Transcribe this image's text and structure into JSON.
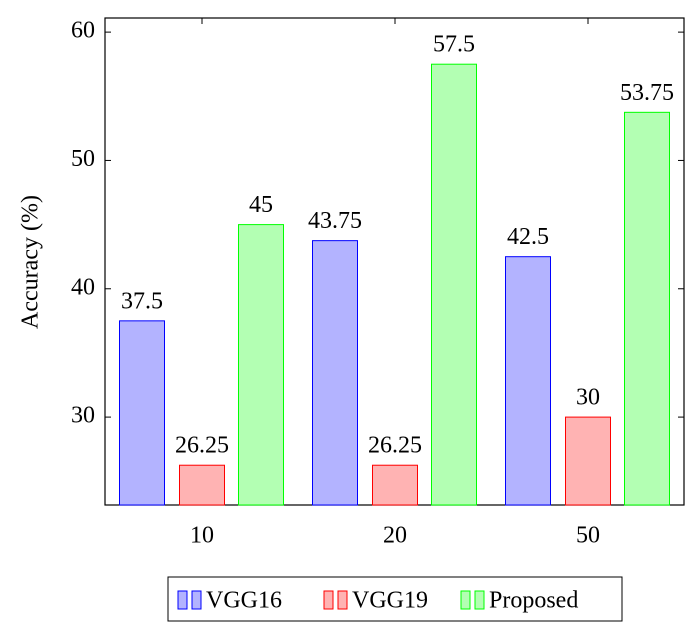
{
  "chart_data": {
    "type": "bar",
    "y_label": "Accuracy (%)",
    "categories": [
      "10",
      "20",
      "50"
    ],
    "series": [
      {
        "name": "VGG16",
        "color": "#b3b3ff",
        "edgecolor": "#0000ff",
        "values": [
          37.5,
          43.75,
          42.5
        ]
      },
      {
        "name": "VGG19",
        "color": "#ffb3b3",
        "edgecolor": "#ff0000",
        "values": [
          26.25,
          26.25,
          30
        ]
      },
      {
        "name": "Proposed",
        "color": "#b3ffb3",
        "edgecolor": "#00ff00",
        "values": [
          45,
          57.5,
          53.75
        ]
      }
    ],
    "ylim": [
      23.15,
      61.1
    ],
    "yticks": [
      30,
      40,
      50,
      60
    ],
    "grid": false,
    "legend": "bottom"
  }
}
